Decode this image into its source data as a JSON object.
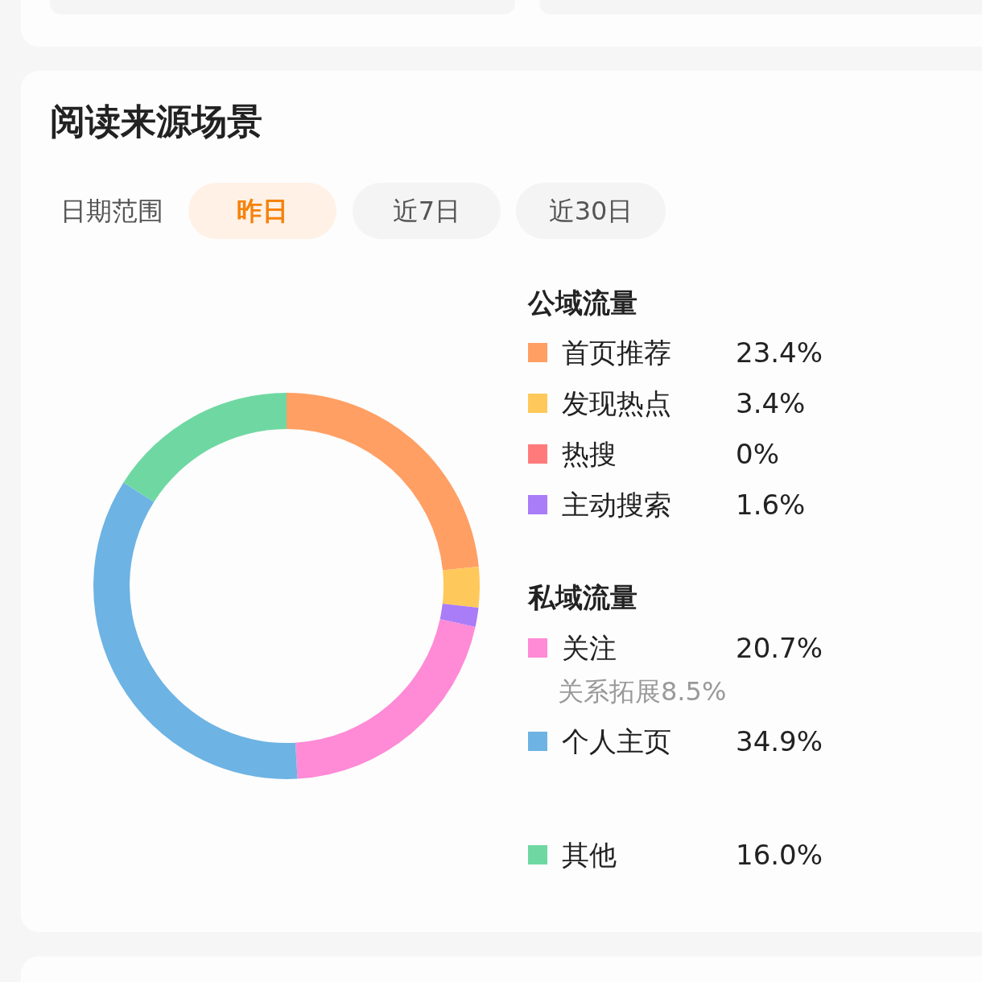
{
  "chart_data": {
    "type": "donut",
    "title": "阅读来源场景",
    "categories": [
      "首页推荐",
      "发现热点",
      "热搜",
      "主动搜索",
      "关注",
      "个人主页",
      "其他"
    ],
    "values": [
      23.4,
      3.4,
      0,
      1.6,
      20.7,
      34.9,
      16.0
    ],
    "value_labels": [
      "23.4%",
      "3.4%",
      "0%",
      "1.6%",
      "20.7%",
      "34.9%",
      "16.0%"
    ],
    "colors": [
      "#ff9f64",
      "#ffc85a",
      "#ff7b7b",
      "#a97cf8",
      "#ff8ad6",
      "#6db3e4",
      "#6fd8a2"
    ],
    "legend": "right",
    "annotations": [
      "日期范围",
      "昨日",
      "近7日",
      "近30日",
      "公域流量",
      "私域流量",
      "关系拓展8.5%"
    ]
  }
}
